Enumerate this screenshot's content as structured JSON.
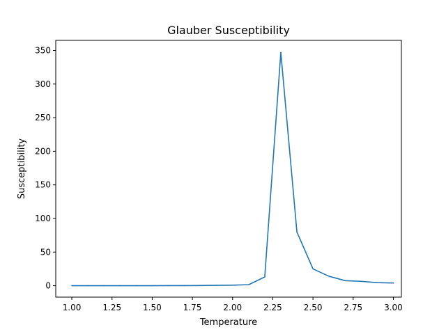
{
  "chart_data": {
    "type": "line",
    "title": "Glauber Susceptibility",
    "xlabel": "Temperature",
    "ylabel": "Susceptibility",
    "xlim": [
      0.9,
      3.05
    ],
    "ylim": [
      -17,
      365
    ],
    "xticks": [
      1.0,
      1.25,
      1.5,
      1.75,
      2.0,
      2.25,
      2.5,
      2.75,
      3.0
    ],
    "xtick_labels": [
      "1.00",
      "1.25",
      "1.50",
      "1.75",
      "2.00",
      "2.25",
      "2.50",
      "2.75",
      "3.00"
    ],
    "yticks": [
      0,
      50,
      100,
      150,
      200,
      250,
      300,
      350
    ],
    "ytick_labels": [
      "0",
      "50",
      "100",
      "150",
      "200",
      "250",
      "300",
      "350"
    ],
    "grid": false,
    "series": [
      {
        "color": "#1f77b4",
        "x": [
          1.0,
          1.1,
          1.2,
          1.3,
          1.4,
          1.5,
          1.6,
          1.7,
          1.8,
          1.9,
          2.0,
          2.1,
          2.2,
          2.3,
          2.4,
          2.5,
          2.6,
          2.7,
          2.8,
          2.9,
          3.0
        ],
        "y": [
          0.0,
          0.0,
          0.0,
          0.0,
          0.0,
          0.0,
          0.1,
          0.2,
          0.3,
          0.5,
          0.8,
          1.5,
          13,
          347,
          80,
          25,
          14,
          7.5,
          6.5,
          4.5,
          4
        ]
      }
    ]
  }
}
